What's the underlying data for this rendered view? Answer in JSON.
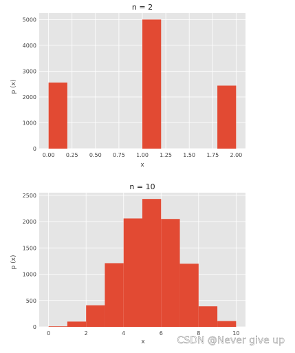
{
  "colors": {
    "bar": "#E24A33",
    "panel": "#E5E5E5",
    "grid": "#FFFFFF"
  },
  "watermark": "CSDN @Never  give  up",
  "chart_data": [
    {
      "type": "bar",
      "title": "n = 2",
      "xlabel": "x",
      "ylabel": "p (x)",
      "xlim": [
        -0.1,
        2.1
      ],
      "ylim": [
        0,
        5250
      ],
      "xticks": [
        "0.00",
        "0.25",
        "0.50",
        "0.75",
        "1.00",
        "1.25",
        "1.50",
        "1.75",
        "2.00"
      ],
      "yticks": [
        "0",
        "1000",
        "2000",
        "3000",
        "4000",
        "5000"
      ],
      "grid": true,
      "bins": [
        {
          "x0": 0.0,
          "x1": 0.2,
          "value": 2560
        },
        {
          "x0": 1.0,
          "x1": 1.2,
          "value": 5000
        },
        {
          "x0": 1.8,
          "x1": 2.0,
          "value": 2440
        }
      ]
    },
    {
      "type": "bar",
      "title": "n = 10",
      "xlabel": "x",
      "ylabel": "p (x)",
      "xlim": [
        -0.5,
        10.5
      ],
      "ylim": [
        0,
        2550
      ],
      "xticks": [
        "0",
        "2",
        "4",
        "6",
        "8",
        "10"
      ],
      "yticks": [
        "0",
        "500",
        "1000",
        "1500",
        "2000",
        "2500"
      ],
      "grid": true,
      "bins": [
        {
          "x0": 0,
          "x1": 1,
          "value": 10
        },
        {
          "x0": 1,
          "x1": 2,
          "value": 100
        },
        {
          "x0": 2,
          "x1": 3,
          "value": 410
        },
        {
          "x0": 3,
          "x1": 4,
          "value": 1210
        },
        {
          "x0": 4,
          "x1": 5,
          "value": 2060
        },
        {
          "x0": 5,
          "x1": 6,
          "value": 2430
        },
        {
          "x0": 6,
          "x1": 7,
          "value": 2050
        },
        {
          "x0": 7,
          "x1": 8,
          "value": 1200
        },
        {
          "x0": 8,
          "x1": 9,
          "value": 390
        },
        {
          "x0": 9,
          "x1": 10,
          "value": 110
        }
      ]
    }
  ]
}
